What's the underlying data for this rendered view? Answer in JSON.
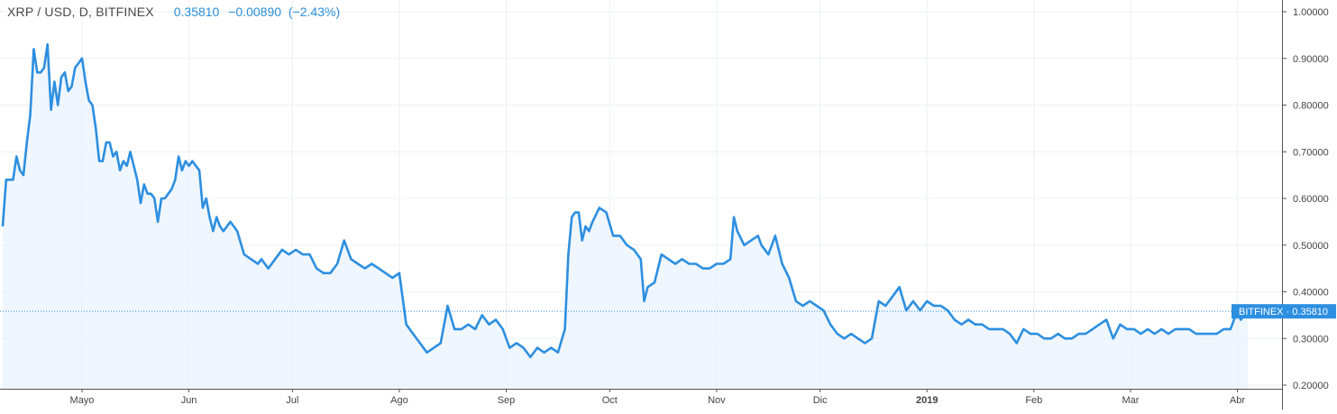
{
  "legend": {
    "symbol": "XRP / USD, D, BITFINEX",
    "last": "0.35810",
    "change": "−0.00890",
    "change_pct": "(−2.43%)"
  },
  "colors": {
    "line": "#2d8fe0",
    "fill": "#e9f3fc",
    "grid": "#eef0f3",
    "axis_text": "#444444",
    "badge": "#2d8fe0"
  },
  "chart_data": {
    "type": "area",
    "title": "",
    "xlabel": "",
    "ylabel": "",
    "x_range": [
      "2018-04-07",
      "2019-04-17"
    ],
    "ylim": [
      0.19,
      1.0
    ],
    "y_ticks": [
      "1.00000",
      "0.90000",
      "0.80000",
      "0.70000",
      "0.60000",
      "0.50000",
      "0.40000",
      "0.30000",
      "0.20000"
    ],
    "x_ticks": [
      {
        "label": "Mayo",
        "date": "2018-05-01"
      },
      {
        "label": "Jun",
        "date": "2018-06-01"
      },
      {
        "label": "Jul",
        "date": "2018-07-01"
      },
      {
        "label": "Ago",
        "date": "2018-08-01"
      },
      {
        "label": "Sep",
        "date": "2018-09-01"
      },
      {
        "label": "Oct",
        "date": "2018-10-01"
      },
      {
        "label": "Nov",
        "date": "2018-11-01"
      },
      {
        "label": "Dic",
        "date": "2018-12-01"
      },
      {
        "label": "2019",
        "date": "2019-01-01"
      },
      {
        "label": "Feb",
        "date": "2019-02-01"
      },
      {
        "label": "Mar",
        "date": "2019-03-01"
      },
      {
        "label": "Abr",
        "date": "2019-04-01"
      }
    ],
    "last_price": {
      "badge": "BITFINEX",
      "value": "0.35810",
      "y": 0.3581
    },
    "grid": true,
    "series": [
      {
        "x": [
          "2018-04-08",
          "2018-04-09",
          "2018-04-10",
          "2018-04-11",
          "2018-04-12",
          "2018-04-13",
          "2018-04-14",
          "2018-04-15",
          "2018-04-16",
          "2018-04-17",
          "2018-04-18",
          "2018-04-19",
          "2018-04-20",
          "2018-04-21",
          "2018-04-22",
          "2018-04-23",
          "2018-04-24",
          "2018-04-25",
          "2018-04-26",
          "2018-04-27",
          "2018-04-28",
          "2018-04-29",
          "2018-04-30",
          "2018-05-01",
          "2018-05-02",
          "2018-05-03",
          "2018-05-04",
          "2018-05-05",
          "2018-05-06",
          "2018-05-07",
          "2018-05-08",
          "2018-05-09",
          "2018-05-10",
          "2018-05-11",
          "2018-05-12",
          "2018-05-13",
          "2018-05-14",
          "2018-05-15",
          "2018-05-16",
          "2018-05-17",
          "2018-05-18",
          "2018-05-19",
          "2018-05-20",
          "2018-05-21",
          "2018-05-22",
          "2018-05-23",
          "2018-05-24",
          "2018-05-25",
          "2018-05-26",
          "2018-05-27",
          "2018-05-28",
          "2018-05-29",
          "2018-05-30",
          "2018-05-31",
          "2018-06-01",
          "2018-06-02",
          "2018-06-03",
          "2018-06-04",
          "2018-06-05",
          "2018-06-06",
          "2018-06-07",
          "2018-06-08",
          "2018-06-09",
          "2018-06-10",
          "2018-06-11",
          "2018-06-12",
          "2018-06-13",
          "2018-06-14",
          "2018-06-15",
          "2018-06-17",
          "2018-06-19",
          "2018-06-21",
          "2018-06-22",
          "2018-06-24",
          "2018-06-26",
          "2018-06-28",
          "2018-06-30",
          "2018-07-02",
          "2018-07-04",
          "2018-07-06",
          "2018-07-08",
          "2018-07-10",
          "2018-07-12",
          "2018-07-14",
          "2018-07-16",
          "2018-07-18",
          "2018-07-20",
          "2018-07-22",
          "2018-07-24",
          "2018-07-26",
          "2018-07-28",
          "2018-07-30",
          "2018-08-01",
          "2018-08-03",
          "2018-08-05",
          "2018-08-07",
          "2018-08-09",
          "2018-08-11",
          "2018-08-13",
          "2018-08-15",
          "2018-08-17",
          "2018-08-19",
          "2018-08-21",
          "2018-08-23",
          "2018-08-25",
          "2018-08-27",
          "2018-08-29",
          "2018-08-31",
          "2018-09-02",
          "2018-09-04",
          "2018-09-06",
          "2018-09-08",
          "2018-09-10",
          "2018-09-12",
          "2018-09-14",
          "2018-09-16",
          "2018-09-18",
          "2018-09-19",
          "2018-09-20",
          "2018-09-21",
          "2018-09-22",
          "2018-09-23",
          "2018-09-24",
          "2018-09-25",
          "2018-09-26",
          "2018-09-28",
          "2018-09-30",
          "2018-10-02",
          "2018-10-04",
          "2018-10-06",
          "2018-10-08",
          "2018-10-10",
          "2018-10-11",
          "2018-10-12",
          "2018-10-14",
          "2018-10-16",
          "2018-10-18",
          "2018-10-20",
          "2018-10-22",
          "2018-10-24",
          "2018-10-26",
          "2018-10-28",
          "2018-10-30",
          "2018-11-01",
          "2018-11-03",
          "2018-11-05",
          "2018-11-06",
          "2018-11-07",
          "2018-11-09",
          "2018-11-11",
          "2018-11-13",
          "2018-11-14",
          "2018-11-16",
          "2018-11-18",
          "2018-11-20",
          "2018-11-22",
          "2018-11-24",
          "2018-11-26",
          "2018-11-28",
          "2018-11-30",
          "2018-12-02",
          "2018-12-04",
          "2018-12-06",
          "2018-12-08",
          "2018-12-10",
          "2018-12-12",
          "2018-12-14",
          "2018-12-16",
          "2018-12-18",
          "2018-12-20",
          "2018-12-22",
          "2018-12-24",
          "2018-12-26",
          "2018-12-28",
          "2018-12-30",
          "2019-01-01",
          "2019-01-03",
          "2019-01-05",
          "2019-01-07",
          "2019-01-09",
          "2019-01-11",
          "2019-01-13",
          "2019-01-15",
          "2019-01-17",
          "2019-01-19",
          "2019-01-21",
          "2019-01-23",
          "2019-01-25",
          "2019-01-27",
          "2019-01-29",
          "2019-01-31",
          "2019-02-02",
          "2019-02-04",
          "2019-02-06",
          "2019-02-08",
          "2019-02-10",
          "2019-02-12",
          "2019-02-14",
          "2019-02-16",
          "2019-02-18",
          "2019-02-20",
          "2019-02-22",
          "2019-02-24",
          "2019-02-26",
          "2019-02-28",
          "2019-03-02",
          "2019-03-04",
          "2019-03-06",
          "2019-03-08",
          "2019-03-10",
          "2019-03-12",
          "2019-03-14",
          "2019-03-16",
          "2019-03-18",
          "2019-03-20",
          "2019-03-22",
          "2019-03-24",
          "2019-03-26",
          "2019-03-28",
          "2019-03-30",
          "2019-04-01",
          "2019-04-02",
          "2019-04-03",
          "2019-04-04"
        ],
        "values": [
          0.54,
          0.64,
          0.64,
          0.64,
          0.69,
          0.66,
          0.65,
          0.72,
          0.78,
          0.92,
          0.87,
          0.87,
          0.88,
          0.93,
          0.79,
          0.85,
          0.8,
          0.86,
          0.87,
          0.83,
          0.84,
          0.88,
          0.89,
          0.9,
          0.85,
          0.81,
          0.8,
          0.75,
          0.68,
          0.68,
          0.72,
          0.72,
          0.69,
          0.7,
          0.66,
          0.68,
          0.67,
          0.7,
          0.67,
          0.64,
          0.59,
          0.63,
          0.61,
          0.61,
          0.6,
          0.55,
          0.6,
          0.6,
          0.61,
          0.62,
          0.64,
          0.69,
          0.66,
          0.68,
          0.67,
          0.68,
          0.67,
          0.66,
          0.58,
          0.6,
          0.56,
          0.53,
          0.56,
          0.54,
          0.53,
          0.54,
          0.55,
          0.54,
          0.53,
          0.48,
          0.47,
          0.46,
          0.47,
          0.45,
          0.47,
          0.49,
          0.48,
          0.49,
          0.48,
          0.48,
          0.45,
          0.44,
          0.44,
          0.46,
          0.51,
          0.47,
          0.46,
          0.45,
          0.46,
          0.45,
          0.44,
          0.43,
          0.44,
          0.33,
          0.31,
          0.29,
          0.27,
          0.28,
          0.29,
          0.37,
          0.32,
          0.32,
          0.33,
          0.32,
          0.35,
          0.33,
          0.34,
          0.32,
          0.28,
          0.29,
          0.28,
          0.26,
          0.28,
          0.27,
          0.28,
          0.27,
          0.32,
          0.48,
          0.56,
          0.57,
          0.57,
          0.51,
          0.54,
          0.53,
          0.55,
          0.58,
          0.57,
          0.52,
          0.52,
          0.5,
          0.49,
          0.47,
          0.38,
          0.41,
          0.42,
          0.48,
          0.47,
          0.46,
          0.47,
          0.46,
          0.46,
          0.45,
          0.45,
          0.46,
          0.46,
          0.47,
          0.56,
          0.53,
          0.5,
          0.51,
          0.52,
          0.5,
          0.48,
          0.52,
          0.46,
          0.43,
          0.38,
          0.37,
          0.38,
          0.37,
          0.36,
          0.33,
          0.31,
          0.3,
          0.31,
          0.3,
          0.29,
          0.3,
          0.38,
          0.37,
          0.39,
          0.41,
          0.36,
          0.38,
          0.36,
          0.38,
          0.37,
          0.37,
          0.36,
          0.34,
          0.33,
          0.34,
          0.33,
          0.33,
          0.32,
          0.32,
          0.32,
          0.31,
          0.29,
          0.32,
          0.31,
          0.31,
          0.3,
          0.3,
          0.31,
          0.3,
          0.3,
          0.31,
          0.31,
          0.32,
          0.33,
          0.34,
          0.3,
          0.33,
          0.32,
          0.32,
          0.31,
          0.32,
          0.31,
          0.32,
          0.31,
          0.32,
          0.32,
          0.32,
          0.31,
          0.31,
          0.31,
          0.31,
          0.32,
          0.32,
          0.36,
          0.34,
          0.35,
          0.36
        ]
      }
    ]
  }
}
